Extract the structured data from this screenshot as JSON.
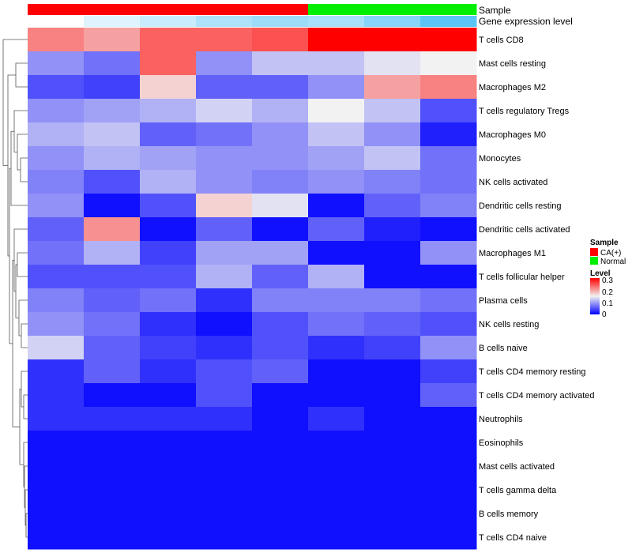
{
  "chart_data": {
    "type": "heatmap",
    "rows": [
      "T cells CD8",
      "Mast cells resting",
      "Macrophages M2",
      "T cells regulatory  Tregs",
      "Macrophages M0",
      "Monocytes",
      "NK cells activated",
      "Dendritic cells resting",
      "Dendritic cells activated",
      "Macrophages M1",
      "T cells follicular helper",
      "Plasma cells",
      "NK cells resting",
      "B cells naive",
      "T cells CD4 memory resting",
      "T cells CD4 memory activated",
      "Neutrophils",
      "Eosinophils",
      "Mast cells activated",
      "T cells gamma delta",
      "B cells memory",
      "T cells CD4 naive"
    ],
    "columns_count": 8,
    "values": [
      [
        0.22,
        0.2,
        0.24,
        0.24,
        0.25,
        0.3,
        0.3,
        0.3
      ],
      [
        0.09,
        0.07,
        0.24,
        0.09,
        0.12,
        0.12,
        0.14,
        0.15
      ],
      [
        0.05,
        0.04,
        0.17,
        0.06,
        0.06,
        0.09,
        0.2,
        0.22
      ],
      [
        0.09,
        0.1,
        0.11,
        0.13,
        0.11,
        0.15,
        0.12,
        0.05
      ],
      [
        0.11,
        0.12,
        0.06,
        0.07,
        0.09,
        0.12,
        0.09,
        0.02
      ],
      [
        0.09,
        0.11,
        0.1,
        0.09,
        0.09,
        0.1,
        0.12,
        0.07
      ],
      [
        0.08,
        0.05,
        0.11,
        0.09,
        0.08,
        0.09,
        0.08,
        0.07
      ],
      [
        0.09,
        0.01,
        0.05,
        0.17,
        0.14,
        0.01,
        0.06,
        0.08
      ],
      [
        0.06,
        0.21,
        0.01,
        0.06,
        0.01,
        0.06,
        0.02,
        0.01
      ],
      [
        0.07,
        0.11,
        0.04,
        0.1,
        0.1,
        0.01,
        0.01,
        0.09
      ],
      [
        0.05,
        0.05,
        0.05,
        0.11,
        0.06,
        0.11,
        0.01,
        0.01
      ],
      [
        0.08,
        0.06,
        0.07,
        0.03,
        0.08,
        0.08,
        0.08,
        0.07
      ],
      [
        0.09,
        0.07,
        0.03,
        0.01,
        0.05,
        0.07,
        0.06,
        0.05
      ],
      [
        0.13,
        0.06,
        0.04,
        0.03,
        0.05,
        0.03,
        0.04,
        0.09
      ],
      [
        0.03,
        0.06,
        0.03,
        0.05,
        0.06,
        0.01,
        0.01,
        0.04
      ],
      [
        0.03,
        0.01,
        0.01,
        0.05,
        0.01,
        0.01,
        0.01,
        0.06
      ],
      [
        0.03,
        0.03,
        0.03,
        0.03,
        0.01,
        0.03,
        0.01,
        0.01
      ],
      [
        0.01,
        0.01,
        0.01,
        0.01,
        0.01,
        0.01,
        0.01,
        0.01
      ],
      [
        0.01,
        0.01,
        0.01,
        0.01,
        0.01,
        0.01,
        0.01,
        0.01
      ],
      [
        0.01,
        0.01,
        0.01,
        0.01,
        0.01,
        0.01,
        0.01,
        0.01
      ],
      [
        0.01,
        0.01,
        0.01,
        0.01,
        0.01,
        0.01,
        0.01,
        0.01
      ],
      [
        0.01,
        0.01,
        0.01,
        0.01,
        0.01,
        0.01,
        0.01,
        0.01
      ]
    ],
    "annotations": [
      {
        "name": "Sample",
        "values": [
          "CA(+)",
          "CA(+)",
          "CA(+)",
          "CA(+)",
          "CA(+)",
          "Normal",
          "Normal",
          "Normal"
        ]
      },
      {
        "name": "Gene expression level",
        "values": [
          0.0,
          0.06,
          0.1,
          0.15,
          0.18,
          0.16,
          0.22,
          0.3
        ]
      }
    ],
    "legend": {
      "sample_title": "Sample",
      "sample_entries": [
        {
          "label": "CA(+)",
          "color": "#ff0000"
        },
        {
          "label": "Normal",
          "color": "#00ee00"
        }
      ],
      "level_title": "Level",
      "level_ticks": [
        "0.3",
        "0.2",
        "0.1",
        "0"
      ],
      "level_range": [
        0,
        0.3
      ]
    },
    "color_scale": {
      "low": "#0000ff",
      "mid": "#f2f2f2",
      "high": "#ff0000",
      "min": 0,
      "mid_value": 0.15,
      "max": 0.3
    },
    "gene_level_scale": {
      "low": "#ffffff",
      "high": "#5bc5f5"
    },
    "dendrogram": "row clustering shown on left"
  }
}
